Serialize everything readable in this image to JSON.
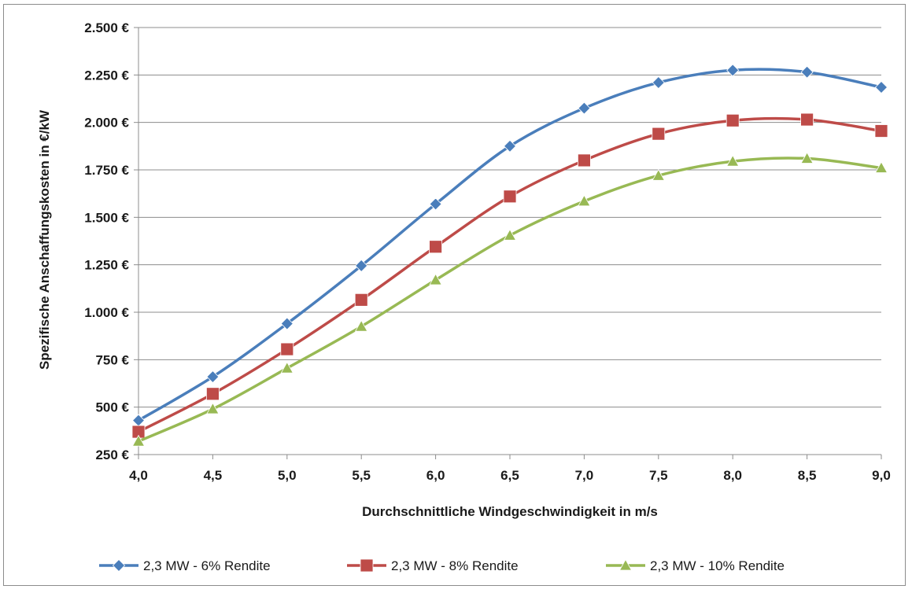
{
  "chart_data": {
    "type": "line",
    "title": "",
    "xlabel": "Durchschnittliche Windgeschwindigkeit in m/s",
    "ylabel": "Spezifische Anschaffungskosten in €/kW",
    "x": [
      4.0,
      4.5,
      5.0,
      5.5,
      6.0,
      6.5,
      7.0,
      7.5,
      8.0,
      8.5,
      9.0
    ],
    "x_tick_labels": [
      "4,0",
      "4,5",
      "5,0",
      "5,5",
      "6,0",
      "6,5",
      "7,0",
      "7,5",
      "8,0",
      "8,5",
      "9,0"
    ],
    "y_ticks": [
      250,
      500,
      750,
      1000,
      1250,
      1500,
      1750,
      2000,
      2250,
      2500
    ],
    "y_tick_labels": [
      "250 €",
      "500 €",
      "750 €",
      "1.000 €",
      "1.250 €",
      "1.500 €",
      "1.750 €",
      "2.000 €",
      "2.250 €",
      "2.500 €"
    ],
    "xlim": [
      4.0,
      9.0
    ],
    "ylim": [
      250,
      2500
    ],
    "grid": "horizontal",
    "legend_position": "bottom",
    "series": [
      {
        "name": "2,3 MW - 6% Rendite",
        "color": "#4a7ebb",
        "marker": "diamond",
        "values": [
          430,
          660,
          940,
          1245,
          1570,
          1875,
          2075,
          2210,
          2275,
          2265,
          2185
        ]
      },
      {
        "name": "2,3 MW - 8% Rendite",
        "color": "#be4b48",
        "marker": "square",
        "values": [
          370,
          570,
          805,
          1065,
          1345,
          1610,
          1800,
          1940,
          2010,
          2015,
          1955
        ]
      },
      {
        "name": "2,3 MW - 10% Rendite",
        "color": "#98b954",
        "marker": "triangle",
        "values": [
          320,
          490,
          705,
          925,
          1170,
          1405,
          1585,
          1720,
          1795,
          1810,
          1760
        ]
      }
    ]
  }
}
